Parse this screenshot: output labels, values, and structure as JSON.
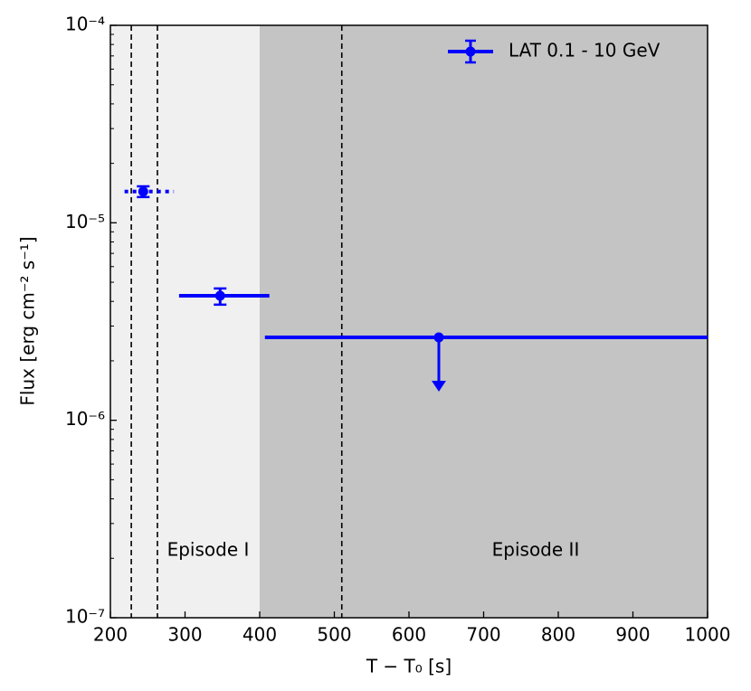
{
  "chart_data": {
    "type": "errorbar",
    "x_label": "T − T₀ [s]",
    "y_label": "Flux [erg cm⁻² s⁻¹]",
    "xlim": [
      200,
      1000
    ],
    "ylim": [
      1e-07,
      0.0001
    ],
    "y_scale": "log",
    "xticks": [
      200,
      300,
      400,
      500,
      600,
      700,
      800,
      900,
      1000
    ],
    "yticks": [
      {
        "value": 1e-07,
        "label": "10⁻⁷"
      },
      {
        "value": 1e-06,
        "label": "10⁻⁶"
      },
      {
        "value": 1e-05,
        "label": "10⁻⁵"
      },
      {
        "value": 0.0001,
        "label": "10⁻⁴"
      }
    ],
    "shaded_regions": [
      {
        "x_start": 200,
        "x_end": 400,
        "color": "#f0f0f0"
      },
      {
        "x_start": 400,
        "x_end": 1000,
        "color": "#c4c4c4"
      }
    ],
    "vlines": [
      228,
      263,
      510
    ],
    "annotations": [
      "Episode I",
      "Episode II"
    ],
    "legend_position": "upper right",
    "series": [
      {
        "name": "LAT 0.1 - 10 GeV",
        "color": "#0000ff",
        "x": [
          244,
          347,
          640
        ],
        "x_start": [
          219,
          292,
          407
        ],
        "x_end": [
          285,
          413,
          1000
        ],
        "values": [
          1.44e-05,
          4.27e-06,
          2.63e-06
        ],
        "err_low": [
          9e-07,
          4.2e-07,
          null
        ],
        "err_high": [
          9e-07,
          3.8e-07,
          null
        ],
        "upper_limit": [
          false,
          false,
          true
        ],
        "linestyles": [
          "dotted",
          "solid",
          "solid"
        ]
      }
    ]
  }
}
